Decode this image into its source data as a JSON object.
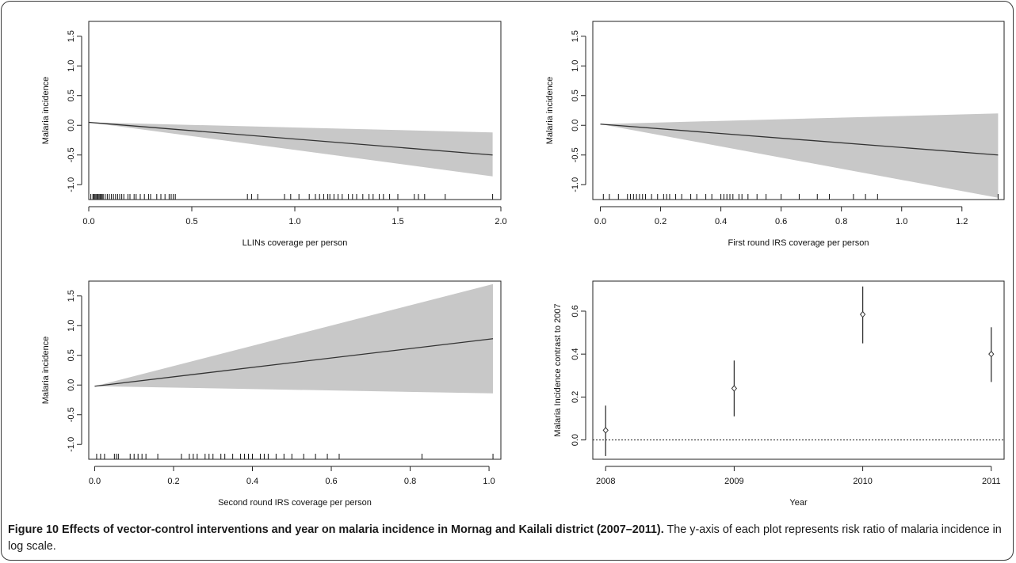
{
  "figure": {
    "caption_title": "Figure 10 Effects of vector-control interventions and year on malaria incidence in Mornag and Kailali district (2007–2011).",
    "caption_text": "The y-axis of each plot represents risk ratio of malaria incidence in log scale."
  },
  "chart_data": [
    {
      "type": "line",
      "xlabel": "LLINs coverage per person",
      "ylabel": "Malaria incidence",
      "xlim": [
        0,
        2.0
      ],
      "ylim": [
        -1.25,
        1.75
      ],
      "xticks": [
        "0.0",
        "0.5",
        "1.0",
        "1.5",
        "2.0"
      ],
      "yticks": [
        "-1.0",
        "-0.5",
        "0.0",
        "0.5",
        "1.0",
        "1.5"
      ],
      "series": [
        {
          "x": [
            0.0,
            1.96
          ],
          "y": [
            0.05,
            -0.5
          ]
        }
      ],
      "band": {
        "x": [
          0.0,
          1.96
        ],
        "lower": [
          0.05,
          -0.86
        ],
        "upper": [
          0.05,
          -0.12
        ]
      },
      "rug": [
        0.01,
        0.02,
        0.025,
        0.03,
        0.035,
        0.04,
        0.045,
        0.05,
        0.055,
        0.06,
        0.065,
        0.07,
        0.08,
        0.09,
        0.1,
        0.11,
        0.12,
        0.13,
        0.14,
        0.15,
        0.16,
        0.17,
        0.19,
        0.2,
        0.22,
        0.23,
        0.25,
        0.27,
        0.29,
        0.3,
        0.33,
        0.35,
        0.37,
        0.39,
        0.4,
        0.41,
        0.42,
        0.77,
        0.79,
        0.82,
        0.95,
        0.98,
        1.02,
        1.07,
        1.1,
        1.12,
        1.14,
        1.16,
        1.17,
        1.19,
        1.21,
        1.23,
        1.26,
        1.28,
        1.3,
        1.33,
        1.36,
        1.38,
        1.41,
        1.43,
        1.46,
        1.5,
        1.58,
        1.6,
        1.63,
        1.73,
        1.96
      ]
    },
    {
      "type": "line",
      "xlabel": "First round IRS coverage per person",
      "ylabel": "Malaria incidence",
      "xlim": [
        -0.025,
        1.34
      ],
      "ylim": [
        -1.25,
        1.75
      ],
      "xticks": [
        "0.0",
        "0.2",
        "0.4",
        "0.6",
        "0.8",
        "1.0",
        "1.2"
      ],
      "yticks": [
        "-1.0",
        "-0.5",
        "0.0",
        "0.5",
        "1.0",
        "1.5"
      ],
      "series": [
        {
          "x": [
            0.0,
            1.32
          ],
          "y": [
            0.02,
            -0.5
          ]
        }
      ],
      "band": {
        "x": [
          0.0,
          1.32
        ],
        "lower": [
          0.02,
          -1.22
        ],
        "upper": [
          0.02,
          0.2
        ]
      },
      "rug": [
        0.01,
        0.03,
        0.06,
        0.09,
        0.1,
        0.11,
        0.12,
        0.13,
        0.14,
        0.15,
        0.17,
        0.19,
        0.21,
        0.22,
        0.23,
        0.25,
        0.27,
        0.3,
        0.32,
        0.35,
        0.37,
        0.4,
        0.41,
        0.42,
        0.43,
        0.44,
        0.46,
        0.47,
        0.49,
        0.52,
        0.55,
        0.6,
        0.66,
        0.72,
        0.76,
        0.84,
        0.88,
        0.92,
        1.32
      ]
    },
    {
      "type": "line",
      "xlabel": "Second round IRS coverage per person",
      "ylabel": "Malaria incidence",
      "xlim": [
        -0.015,
        1.03
      ],
      "ylim": [
        -1.25,
        1.75
      ],
      "xticks": [
        "0.0",
        "0.2",
        "0.4",
        "0.6",
        "0.8",
        "1.0"
      ],
      "yticks": [
        "-1.0",
        "-0.5",
        "0.0",
        "0.5",
        "1.0",
        "1.5"
      ],
      "series": [
        {
          "x": [
            0.0,
            1.01
          ],
          "y": [
            -0.02,
            0.78
          ]
        }
      ],
      "band": {
        "x": [
          0.0,
          1.01
        ],
        "lower": [
          -0.02,
          -0.14
        ],
        "upper": [
          -0.02,
          1.7
        ]
      },
      "rug": [
        0.005,
        0.015,
        0.025,
        0.05,
        0.055,
        0.06,
        0.09,
        0.1,
        0.11,
        0.12,
        0.13,
        0.16,
        0.22,
        0.24,
        0.25,
        0.26,
        0.28,
        0.29,
        0.3,
        0.32,
        0.33,
        0.35,
        0.37,
        0.38,
        0.39,
        0.4,
        0.42,
        0.43,
        0.44,
        0.46,
        0.48,
        0.5,
        0.53,
        0.56,
        0.59,
        0.62,
        0.83,
        1.01
      ]
    },
    {
      "type": "scatter",
      "xlabel": "Year",
      "ylabel": "Malaria Incidence contrast to 2007",
      "xlim": [
        2007.9,
        2011.1
      ],
      "ylim": [
        -0.09,
        0.74
      ],
      "xticks": [
        "2008",
        "2009",
        "2010",
        "2011"
      ],
      "yticks": [
        "0.0",
        "0.2",
        "0.4",
        "0.6"
      ],
      "series": [
        {
          "x": [
            2008,
            2009,
            2010,
            2011
          ],
          "y": [
            0.045,
            0.24,
            0.585,
            0.4
          ],
          "lower": [
            -0.075,
            0.11,
            0.45,
            0.27
          ],
          "upper": [
            0.16,
            0.37,
            0.715,
            0.525
          ]
        }
      ],
      "reference_line": 0.0
    }
  ]
}
